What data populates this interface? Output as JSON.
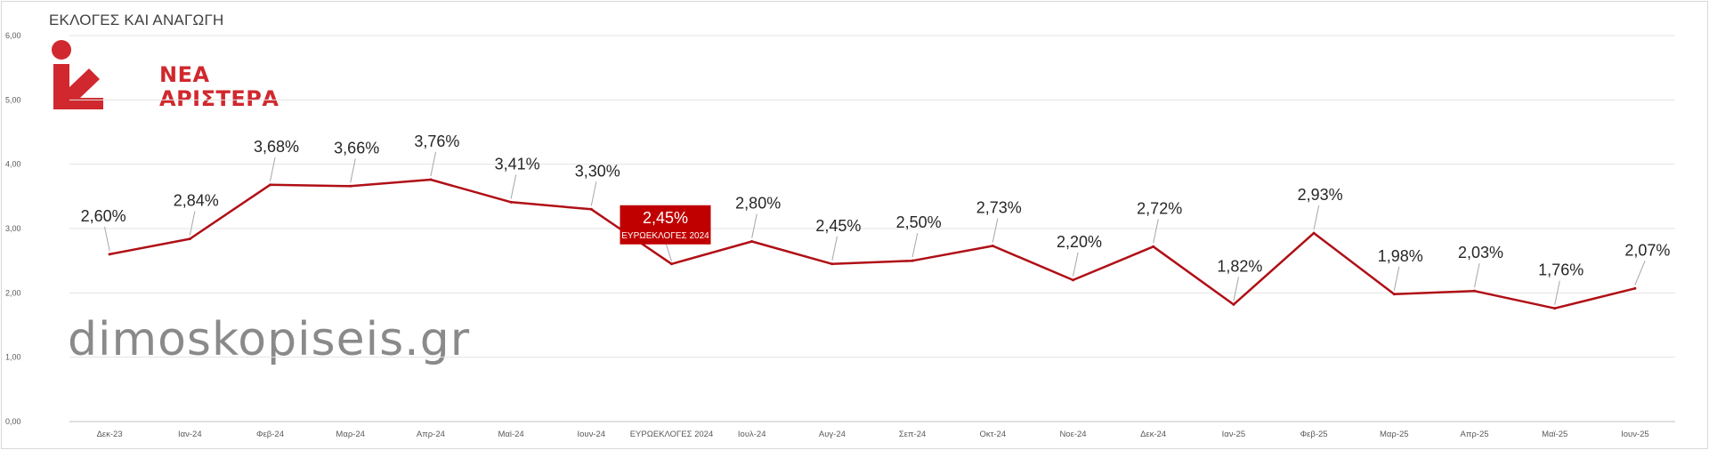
{
  "title": "ΕΚΛΟΓΕΣ ΚΑΙ ΑΝΑΓΩΓΗ",
  "logo": {
    "line1": "ΝΕΑ",
    "line2": "ΑΡΙΣΤΕΡΑ",
    "color": "#d0282e"
  },
  "watermark": "dimoskopiseis.gr",
  "chart_data": {
    "type": "line",
    "categories": [
      "Δεκ-23",
      "Ιαν-24",
      "Φεβ-24",
      "Μαρ-24",
      "Απρ-24",
      "Μαϊ-24",
      "Ιουν-24",
      "ΕΥΡΩΕΚΛΟΓΕΣ 2024",
      "Ιουλ-24",
      "Αυγ-24",
      "Σεπ-24",
      "Οκτ-24",
      "Νοε-24",
      "Δεκ-24",
      "Ιαν-25",
      "Φεβ-25",
      "Μαρ-25",
      "Απρ-25",
      "Μαϊ-25",
      "Ιουν-25"
    ],
    "series": [
      {
        "values": [
          2.6,
          2.84,
          3.68,
          3.66,
          3.76,
          3.41,
          3.3,
          2.45,
          2.8,
          2.45,
          2.5,
          2.73,
          2.2,
          2.72,
          1.82,
          2.93,
          1.98,
          2.03,
          1.76,
          2.07
        ],
        "labels": [
          "2,60%",
          "2,84%",
          "3,68%",
          "3,66%",
          "3,76%",
          "3,41%",
          "3,30%",
          "2,45%",
          "2,80%",
          "2,45%",
          "2,50%",
          "2,73%",
          "2,20%",
          "2,72%",
          "1,82%",
          "2,93%",
          "1,98%",
          "2,03%",
          "1,76%",
          "2,07%"
        ],
        "color": "#b00f16"
      }
    ],
    "highlight": {
      "index": 7,
      "value_label": "2,45%",
      "sublabel": "ΕΥΡΩΕΚΛΟΓΕΣ 2024",
      "color": "#c00000"
    },
    "ylim": [
      0,
      6
    ],
    "yticks": [
      "0,00",
      "1,00",
      "2,00",
      "3,00",
      "4,00",
      "5,00",
      "6,00"
    ],
    "grid": true,
    "xlabel": "",
    "ylabel": ""
  }
}
